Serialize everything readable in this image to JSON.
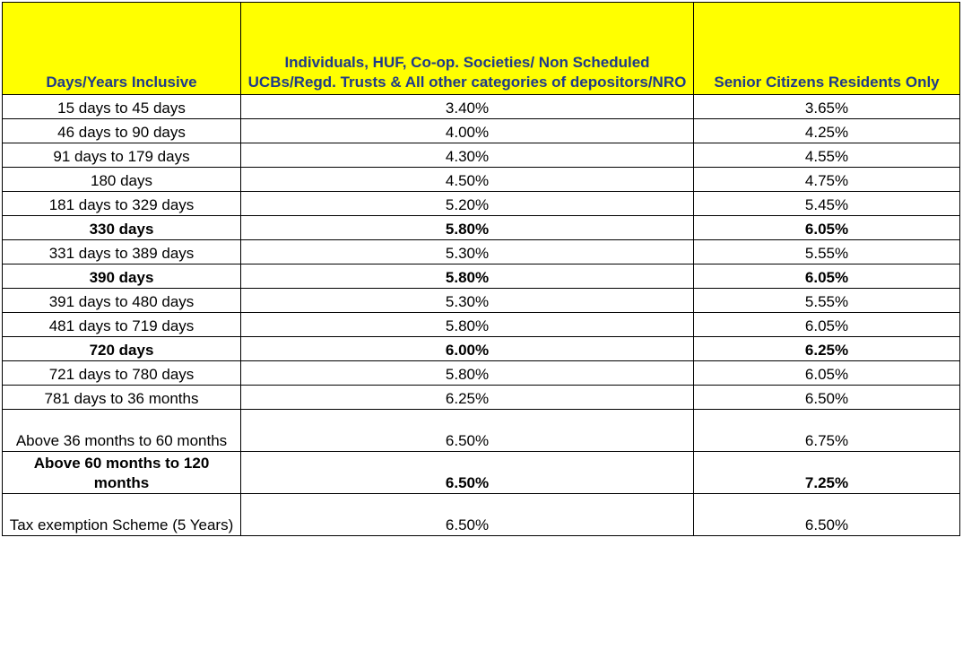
{
  "table": {
    "headers": [
      "Days/Years Inclusive",
      "Individuals, HUF, Co-op. Societies/ Non Scheduled UCBs/Regd. Trusts & All other categories of depositors/NRO",
      "Senior Citizens Residents Only"
    ],
    "rows": [
      {
        "period": "15 days to 45 days",
        "general": "3.40%",
        "senior": "3.65%",
        "bold": false
      },
      {
        "period": "46 days to 90 days",
        "general": "4.00%",
        "senior": "4.25%",
        "bold": false
      },
      {
        "period": "91 days to 179 days",
        "general": "4.30%",
        "senior": "4.55%",
        "bold": false
      },
      {
        "period": "180 days",
        "general": "4.50%",
        "senior": "4.75%",
        "bold": false
      },
      {
        "period": "181 days to 329 days",
        "general": "5.20%",
        "senior": "5.45%",
        "bold": false
      },
      {
        "period": "330 days",
        "general": "5.80%",
        "senior": "6.05%",
        "bold": true
      },
      {
        "period": "331 days to 389 days",
        "general": "5.30%",
        "senior": "5.55%",
        "bold": false
      },
      {
        "period": "390 days",
        "general": "5.80%",
        "senior": "6.05%",
        "bold": true
      },
      {
        "period": "391 days to 480 days",
        "general": "5.30%",
        "senior": "5.55%",
        "bold": false
      },
      {
        "period": "481 days to 719 days",
        "general": "5.80%",
        "senior": "6.05%",
        "bold": false
      },
      {
        "period": "720 days",
        "general": "6.00%",
        "senior": "6.25%",
        "bold": true
      },
      {
        "period": "721 days to 780 days",
        "general": "5.80%",
        "senior": "6.05%",
        "bold": false
      },
      {
        "period": "781 days to 36 months",
        "general": "6.25%",
        "senior": "6.50%",
        "bold": false
      },
      {
        "period": "Above 36 months to 60 months",
        "general": "6.50%",
        "senior": "6.75%",
        "bold": false
      },
      {
        "period": "Above 60 months to 120 months",
        "general": "6.50%",
        "senior": "7.25%",
        "bold": true
      },
      {
        "period": "Tax exemption Scheme (5 Years)",
        "general": "6.50%",
        "senior": "6.50%",
        "bold": false
      }
    ]
  },
  "colors": {
    "header_background": "#ffff00",
    "header_text": "#1f3a8a",
    "border": "#000000"
  }
}
